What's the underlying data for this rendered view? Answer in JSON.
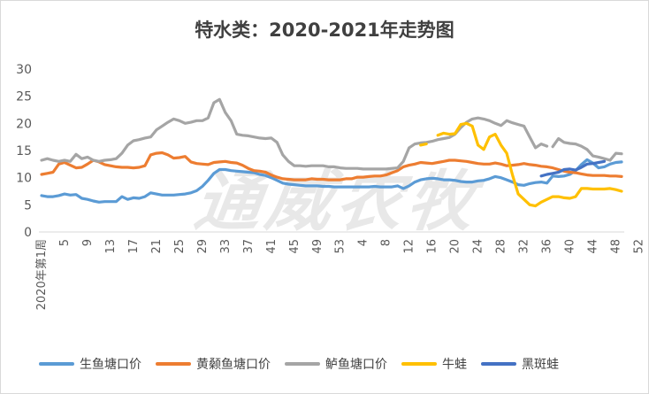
{
  "watermark": "通威农牧",
  "chart_data": {
    "type": "line",
    "title": "特水类：2020-2021年走势图",
    "xlabel": "",
    "ylabel": "",
    "ylim": [
      0,
      30
    ],
    "yticks": [
      0,
      5,
      10,
      15,
      20,
      25,
      30
    ],
    "grid": false,
    "legend_position": "bottom",
    "x_tick_labels": [
      "2020年第1周",
      "5",
      "9",
      "13",
      "17",
      "21",
      "25",
      "29",
      "33",
      "37",
      "41",
      "45",
      "49",
      "53",
      "4",
      "8",
      "12",
      "16",
      "20",
      "24",
      "28",
      "32",
      "36",
      "40",
      "44",
      "48",
      "52"
    ],
    "series": [
      {
        "name": "生鱼塘口价",
        "color": "#5B9BD5",
        "values": [
          6.7,
          6.5,
          6.5,
          6.7,
          7.0,
          6.8,
          6.9,
          6.2,
          6.0,
          5.7,
          5.5,
          5.6,
          5.6,
          5.6,
          6.5,
          6.0,
          6.3,
          6.2,
          6.5,
          7.2,
          7.0,
          6.8,
          6.8,
          6.8,
          6.9,
          7.0,
          7.2,
          7.6,
          8.4,
          9.5,
          10.8,
          11.5,
          11.5,
          11.3,
          11.2,
          11.1,
          11.0,
          10.9,
          10.6,
          10.4,
          10.0,
          9.5,
          9.0,
          8.8,
          8.7,
          8.6,
          8.5,
          8.5,
          8.5,
          8.4,
          8.4,
          8.3,
          8.3,
          8.3,
          8.3,
          8.3,
          8.3,
          8.3,
          8.4,
          8.3,
          8.3,
          8.3,
          8.5,
          8.0,
          8.5,
          9.2,
          9.6,
          9.8,
          9.9,
          9.8,
          9.6,
          9.6,
          9.5,
          9.3,
          9.2,
          9.2,
          9.4,
          9.5,
          9.8,
          10.2,
          10.0,
          9.6,
          9.2,
          8.7,
          8.6,
          8.9,
          9.1,
          9.2,
          9.0,
          10.3,
          10.2,
          10.3,
          10.6,
          11.3,
          12.4,
          13.3,
          12.7,
          11.8,
          12.0,
          12.5,
          12.8,
          12.9
        ],
        "note_cutoff_index": 97
      },
      {
        "name": "黄颡鱼塘口价",
        "color": "#ED7D31",
        "values": [
          10.6,
          10.8,
          11.0,
          12.5,
          12.8,
          12.3,
          11.8,
          11.9,
          12.5,
          13.2,
          12.9,
          12.4,
          12.2,
          12.0,
          11.9,
          11.9,
          11.8,
          11.9,
          12.2,
          14.2,
          14.5,
          14.6,
          14.2,
          13.6,
          13.7,
          13.9,
          12.9,
          12.6,
          12.5,
          12.4,
          12.8,
          12.9,
          13.0,
          12.8,
          12.7,
          12.3,
          11.7,
          11.3,
          11.2,
          11.0,
          10.5,
          10.1,
          9.8,
          9.7,
          9.6,
          9.6,
          9.6,
          9.8,
          9.7,
          9.7,
          9.6,
          9.6,
          9.6,
          9.8,
          9.8,
          10.1,
          10.1,
          10.2,
          10.3,
          10.3,
          10.5,
          10.9,
          11.3,
          12.0,
          12.3,
          12.5,
          12.8,
          12.7,
          12.6,
          12.8,
          13.0,
          13.2,
          13.2,
          13.1,
          13.0,
          12.8,
          12.6,
          12.5,
          12.5,
          12.7,
          12.5,
          12.2,
          12.3,
          12.4,
          12.6,
          12.4,
          12.3,
          12.1,
          12.0,
          11.8,
          11.5,
          11.2,
          11.0,
          10.9,
          10.7,
          10.5,
          10.4,
          10.4,
          10.4,
          10.3,
          10.3,
          10.2
        ]
      },
      {
        "name": "鲈鱼塘口价",
        "color": "#A5A5A5",
        "values": [
          13.2,
          13.5,
          13.2,
          13.0,
          13.2,
          13.0,
          14.3,
          13.5,
          13.8,
          13.2,
          13.0,
          13.2,
          13.3,
          13.5,
          14.5,
          16.0,
          16.8,
          17.0,
          17.3,
          17.5,
          18.8,
          19.5,
          20.2,
          20.8,
          20.5,
          20.0,
          20.2,
          20.5,
          20.5,
          21.0,
          23.8,
          24.4,
          22.0,
          20.5,
          18.0,
          17.8,
          17.7,
          17.5,
          17.3,
          17.2,
          17.3,
          16.5,
          14.2,
          13.0,
          12.2,
          12.2,
          12.1,
          12.2,
          12.2,
          12.2,
          12.0,
          12.0,
          11.8,
          11.7,
          11.7,
          11.7,
          11.6,
          11.6,
          11.6,
          11.6,
          11.6,
          11.7,
          11.8,
          13.0,
          15.5,
          16.2,
          16.4,
          16.5,
          16.7,
          17.0,
          17.2,
          17.4,
          18.0,
          19.2,
          20.2,
          20.8,
          21.0,
          20.8,
          20.5,
          20.0,
          19.6,
          20.5,
          20.1,
          19.8,
          19.5,
          17.5,
          15.5,
          16.2,
          15.8,
          15.7,
          17.2,
          16.5,
          16.3,
          16.2,
          15.8,
          15.2,
          14.0,
          13.8,
          13.5,
          13.2,
          14.5,
          14.4
        ],
        "gaps": [
          [
            88,
            89
          ]
        ]
      },
      {
        "name": "牛蛙",
        "color": "#FFC000",
        "start_index": 66,
        "values": [
          16.0,
          16.2,
          null,
          17.8,
          18.2,
          18.0,
          18.1,
          19.8,
          20.0,
          19.5,
          16.0,
          15.2,
          17.5,
          18.0,
          16.0,
          14.5,
          10.5,
          7.0,
          6.0,
          5.0,
          4.8,
          5.5,
          6.0,
          6.5,
          6.5,
          6.3,
          6.2,
          6.5,
          8.0,
          8.0,
          7.9,
          7.9,
          7.9,
          8.0,
          7.8,
          7.5
        ]
      },
      {
        "name": "黑斑蛙",
        "color": "#4472C4",
        "start_index": 87,
        "values": [
          10.3,
          10.6,
          10.8,
          11.0,
          11.5,
          11.6,
          11.4,
          11.9,
          12.5,
          12.6,
          12.8,
          13.0
        ]
      }
    ]
  }
}
